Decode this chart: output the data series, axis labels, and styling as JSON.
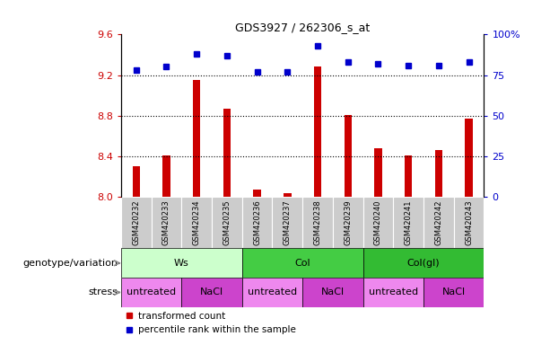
{
  "title": "GDS3927 / 262306_s_at",
  "samples": [
    "GSM420232",
    "GSM420233",
    "GSM420234",
    "GSM420235",
    "GSM420236",
    "GSM420237",
    "GSM420238",
    "GSM420239",
    "GSM420240",
    "GSM420241",
    "GSM420242",
    "GSM420243"
  ],
  "red_values": [
    8.3,
    8.41,
    9.15,
    8.87,
    8.07,
    8.03,
    9.28,
    8.81,
    8.48,
    8.41,
    8.46,
    8.77
  ],
  "blue_values": [
    78,
    80,
    88,
    87,
    77,
    77,
    93,
    83,
    82,
    81,
    81,
    83
  ],
  "ylim_left": [
    8.0,
    9.6
  ],
  "ylim_right": [
    0,
    100
  ],
  "yticks_left": [
    8.0,
    8.4,
    8.8,
    9.2,
    9.6
  ],
  "yticks_right": [
    0,
    25,
    50,
    75,
    100
  ],
  "ytick_labels_right": [
    "0",
    "25",
    "50",
    "75",
    "100%"
  ],
  "bar_color": "#cc0000",
  "dot_color": "#0000cc",
  "bar_bottom": 8.0,
  "tick_bg_color": "#cccccc",
  "group_ws_color": "#ccffcc",
  "group_col_color": "#44cc44",
  "group_colgd_color": "#33bb33",
  "stress_untreated_color": "#ee88ee",
  "stress_nacl_color": "#cc44cc",
  "genotype_label": "genotype/variation",
  "stress_label": "stress",
  "legend_red": "transformed count",
  "legend_blue": "percentile rank within the sample"
}
